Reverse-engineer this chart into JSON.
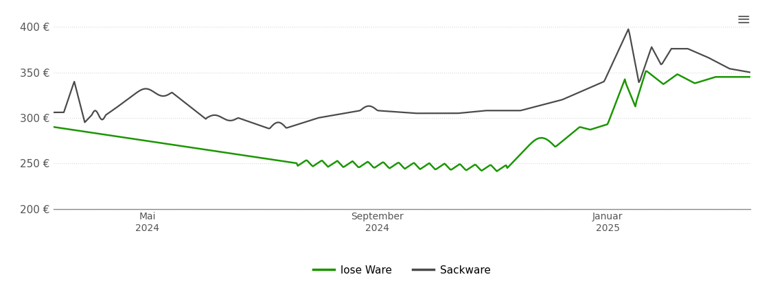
{
  "background_color": "#ffffff",
  "plot_bg_color": "#ffffff",
  "grid_color": "#d8d8d8",
  "y_label_color": "#555555",
  "x_label_color": "#555555",
  "lose_ware_color": "#1a9600",
  "sackware_color": "#4a4a4a",
  "ylim": [
    200,
    420
  ],
  "yticks": [
    200,
    250,
    300,
    350,
    400
  ],
  "x_tick_labels": [
    "Mai\n2024",
    "September\n2024",
    "Januar\n2025"
  ],
  "x_tick_positions": [
    0.135,
    0.465,
    0.795
  ],
  "legend_labels": [
    "lose Ware",
    "Sackware"
  ]
}
